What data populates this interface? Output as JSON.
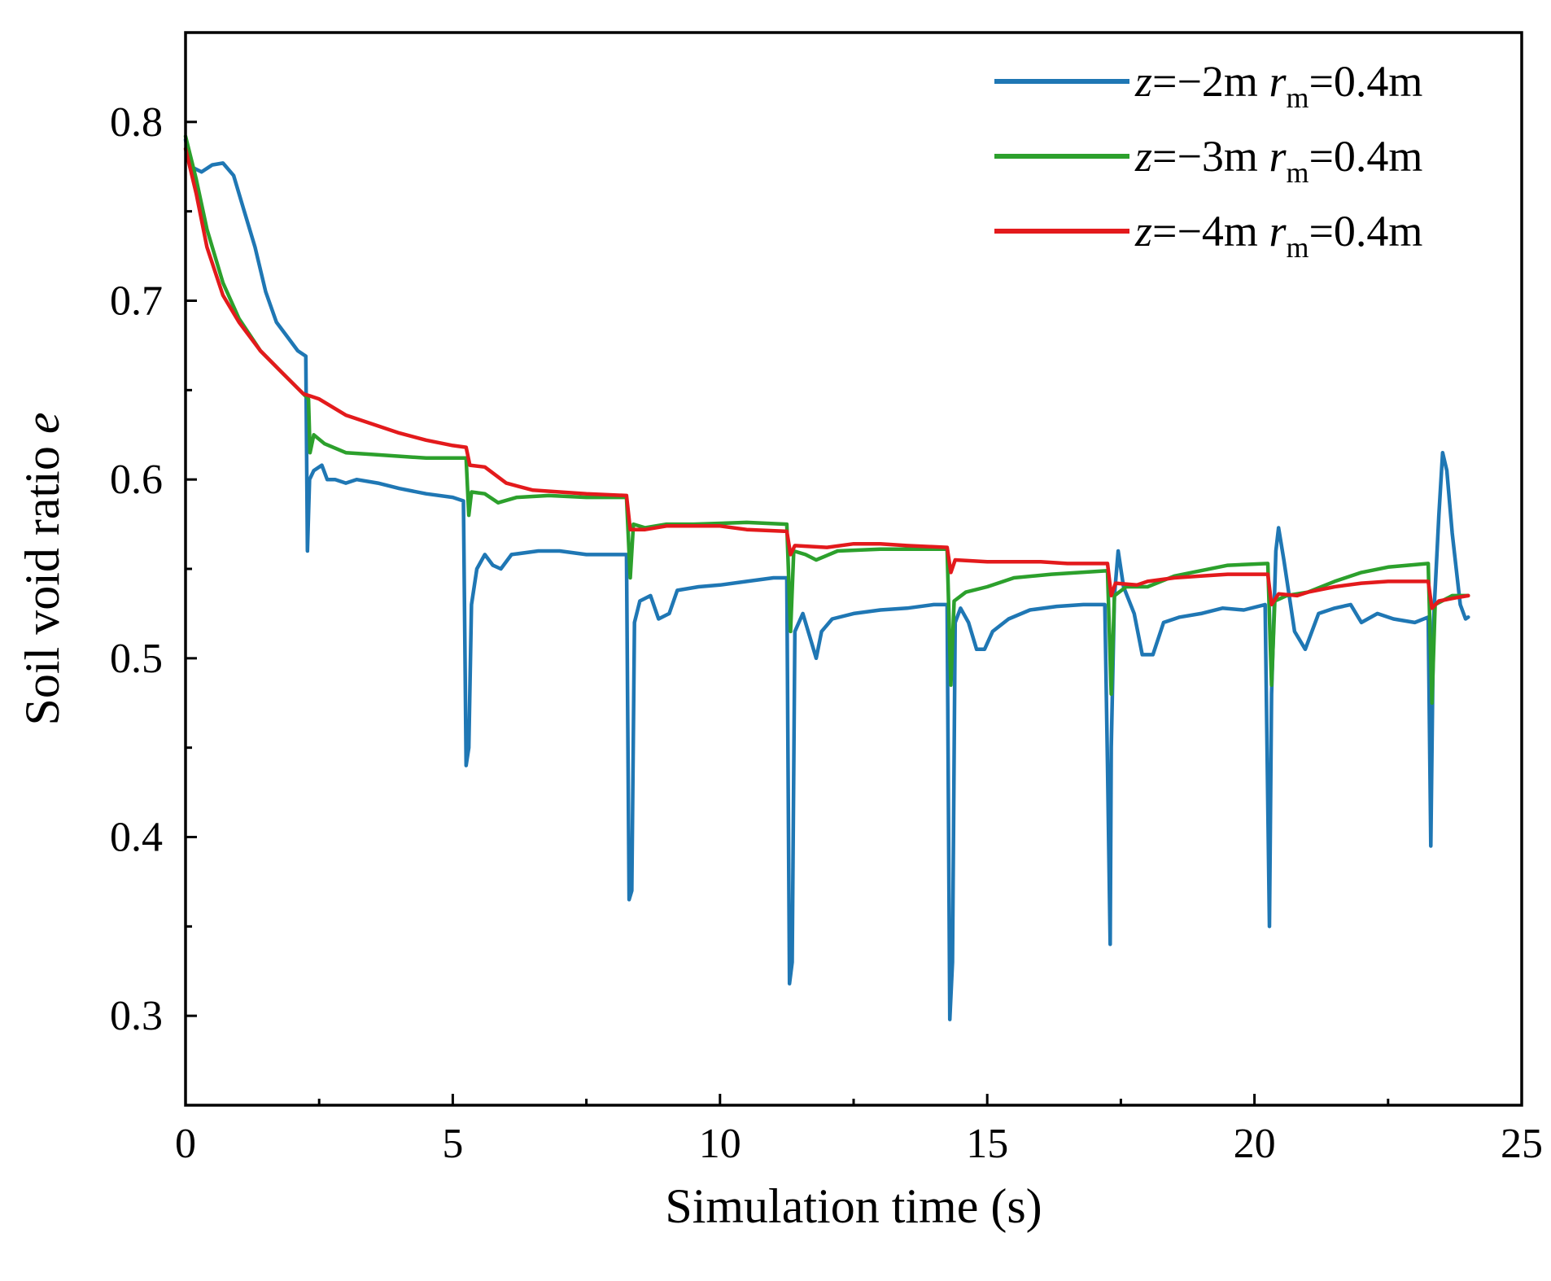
{
  "chart_data": {
    "type": "line",
    "title": "",
    "xlabel": "Simulation time (s)",
    "ylabel": {
      "main": "Soil void ratio ",
      "var": "e"
    },
    "xlim": [
      0,
      25
    ],
    "ylim": [
      0.25,
      0.85
    ],
    "xticks": [
      "0",
      "5",
      "10",
      "15",
      "20",
      "25"
    ],
    "xtick_values": [
      0,
      5,
      10,
      15,
      20,
      25
    ],
    "yticks": [
      "0.3",
      "0.4",
      "0.5",
      "0.6",
      "0.7",
      "0.8"
    ],
    "ytick_values": [
      0.3,
      0.4,
      0.5,
      0.6,
      0.7,
      0.8
    ],
    "grid": false,
    "legend_position": "top-right",
    "series": [
      {
        "name": "z=−2m rm=0.4m",
        "label": {
          "z": "z",
          "eq1": "=−2m ",
          "r": "r",
          "sub": "m",
          "eq2": "=0.4m"
        },
        "color": "#1f77b4",
        "points": [
          [
            0.0,
            0.79
          ],
          [
            0.1,
            0.775
          ],
          [
            0.3,
            0.772
          ],
          [
            0.5,
            0.776
          ],
          [
            0.7,
            0.777
          ],
          [
            0.9,
            0.77
          ],
          [
            1.1,
            0.75
          ],
          [
            1.3,
            0.73
          ],
          [
            1.5,
            0.705
          ],
          [
            1.7,
            0.688
          ],
          [
            1.9,
            0.68
          ],
          [
            2.1,
            0.672
          ],
          [
            2.25,
            0.669
          ],
          [
            2.28,
            0.56
          ],
          [
            2.32,
            0.6
          ],
          [
            2.4,
            0.605
          ],
          [
            2.55,
            0.608
          ],
          [
            2.65,
            0.6
          ],
          [
            2.8,
            0.6
          ],
          [
            3.0,
            0.598
          ],
          [
            3.2,
            0.6
          ],
          [
            3.6,
            0.598
          ],
          [
            4.0,
            0.595
          ],
          [
            4.5,
            0.592
          ],
          [
            5.0,
            0.59
          ],
          [
            5.2,
            0.588
          ],
          [
            5.25,
            0.44
          ],
          [
            5.3,
            0.45
          ],
          [
            5.35,
            0.53
          ],
          [
            5.45,
            0.55
          ],
          [
            5.6,
            0.558
          ],
          [
            5.75,
            0.552
          ],
          [
            5.9,
            0.55
          ],
          [
            6.1,
            0.558
          ],
          [
            6.6,
            0.56
          ],
          [
            7.0,
            0.56
          ],
          [
            7.5,
            0.558
          ],
          [
            8.25,
            0.558
          ],
          [
            8.3,
            0.365
          ],
          [
            8.35,
            0.37
          ],
          [
            8.4,
            0.52
          ],
          [
            8.5,
            0.532
          ],
          [
            8.7,
            0.535
          ],
          [
            8.85,
            0.522
          ],
          [
            9.05,
            0.525
          ],
          [
            9.2,
            0.538
          ],
          [
            9.6,
            0.54
          ],
          [
            10.0,
            0.541
          ],
          [
            10.5,
            0.543
          ],
          [
            11.0,
            0.545
          ],
          [
            11.25,
            0.545
          ],
          [
            11.3,
            0.318
          ],
          [
            11.35,
            0.33
          ],
          [
            11.4,
            0.515
          ],
          [
            11.55,
            0.525
          ],
          [
            11.7,
            0.51
          ],
          [
            11.8,
            0.5
          ],
          [
            11.9,
            0.515
          ],
          [
            12.1,
            0.522
          ],
          [
            12.5,
            0.525
          ],
          [
            13.0,
            0.527
          ],
          [
            13.5,
            0.528
          ],
          [
            14.0,
            0.53
          ],
          [
            14.25,
            0.53
          ],
          [
            14.3,
            0.298
          ],
          [
            14.35,
            0.33
          ],
          [
            14.4,
            0.52
          ],
          [
            14.5,
            0.528
          ],
          [
            14.65,
            0.52
          ],
          [
            14.8,
            0.505
          ],
          [
            14.95,
            0.505
          ],
          [
            15.1,
            0.515
          ],
          [
            15.4,
            0.522
          ],
          [
            15.8,
            0.527
          ],
          [
            16.3,
            0.529
          ],
          [
            16.8,
            0.53
          ],
          [
            17.2,
            0.53
          ],
          [
            17.25,
            0.44
          ],
          [
            17.3,
            0.34
          ],
          [
            17.32,
            0.45
          ],
          [
            17.38,
            0.535
          ],
          [
            17.45,
            0.56
          ],
          [
            17.55,
            0.54
          ],
          [
            17.75,
            0.525
          ],
          [
            17.9,
            0.502
          ],
          [
            18.1,
            0.502
          ],
          [
            18.3,
            0.52
          ],
          [
            18.6,
            0.523
          ],
          [
            19.0,
            0.525
          ],
          [
            19.4,
            0.528
          ],
          [
            19.8,
            0.527
          ],
          [
            20.2,
            0.53
          ],
          [
            20.28,
            0.35
          ],
          [
            20.32,
            0.48
          ],
          [
            20.4,
            0.56
          ],
          [
            20.45,
            0.573
          ],
          [
            20.55,
            0.555
          ],
          [
            20.75,
            0.515
          ],
          [
            20.95,
            0.505
          ],
          [
            21.2,
            0.525
          ],
          [
            21.5,
            0.528
          ],
          [
            21.8,
            0.53
          ],
          [
            22.0,
            0.52
          ],
          [
            22.3,
            0.525
          ],
          [
            22.6,
            0.522
          ],
          [
            23.0,
            0.52
          ],
          [
            23.25,
            0.523
          ],
          [
            23.3,
            0.395
          ],
          [
            23.35,
            0.52
          ],
          [
            23.45,
            0.58
          ],
          [
            23.52,
            0.615
          ],
          [
            23.6,
            0.605
          ],
          [
            23.7,
            0.57
          ],
          [
            23.85,
            0.53
          ],
          [
            23.95,
            0.522
          ],
          [
            24.0,
            0.523
          ]
        ]
      },
      {
        "name": "z=−3m rm=0.4m",
        "label": {
          "z": "z",
          "eq1": "=−3m ",
          "r": "r",
          "sub": "m",
          "eq2": "=0.4m"
        },
        "color": "#2ca02c",
        "points": [
          [
            0.0,
            0.792
          ],
          [
            0.2,
            0.768
          ],
          [
            0.4,
            0.74
          ],
          [
            0.7,
            0.71
          ],
          [
            1.0,
            0.69
          ],
          [
            1.4,
            0.672
          ],
          [
            1.8,
            0.66
          ],
          [
            2.2,
            0.648
          ],
          [
            2.3,
            0.645
          ],
          [
            2.33,
            0.615
          ],
          [
            2.4,
            0.625
          ],
          [
            2.6,
            0.62
          ],
          [
            3.0,
            0.615
          ],
          [
            3.5,
            0.614
          ],
          [
            4.0,
            0.613
          ],
          [
            4.5,
            0.612
          ],
          [
            5.0,
            0.612
          ],
          [
            5.25,
            0.612
          ],
          [
            5.3,
            0.58
          ],
          [
            5.35,
            0.593
          ],
          [
            5.6,
            0.592
          ],
          [
            5.85,
            0.587
          ],
          [
            6.2,
            0.59
          ],
          [
            6.8,
            0.591
          ],
          [
            7.5,
            0.59
          ],
          [
            8.25,
            0.59
          ],
          [
            8.32,
            0.545
          ],
          [
            8.38,
            0.575
          ],
          [
            8.6,
            0.573
          ],
          [
            9.0,
            0.575
          ],
          [
            9.5,
            0.575
          ],
          [
            10.5,
            0.576
          ],
          [
            11.25,
            0.575
          ],
          [
            11.32,
            0.515
          ],
          [
            11.38,
            0.56
          ],
          [
            11.6,
            0.558
          ],
          [
            11.8,
            0.555
          ],
          [
            12.2,
            0.56
          ],
          [
            13.0,
            0.561
          ],
          [
            14.0,
            0.561
          ],
          [
            14.25,
            0.561
          ],
          [
            14.32,
            0.485
          ],
          [
            14.38,
            0.532
          ],
          [
            14.6,
            0.537
          ],
          [
            15.0,
            0.54
          ],
          [
            15.5,
            0.545
          ],
          [
            16.2,
            0.547
          ],
          [
            17.25,
            0.549
          ],
          [
            17.32,
            0.48
          ],
          [
            17.38,
            0.535
          ],
          [
            17.6,
            0.54
          ],
          [
            18.0,
            0.54
          ],
          [
            18.5,
            0.546
          ],
          [
            19.0,
            0.549
          ],
          [
            19.5,
            0.552
          ],
          [
            20.25,
            0.553
          ],
          [
            20.32,
            0.485
          ],
          [
            20.38,
            0.532
          ],
          [
            20.6,
            0.535
          ],
          [
            21.0,
            0.537
          ],
          [
            21.5,
            0.543
          ],
          [
            22.0,
            0.548
          ],
          [
            22.5,
            0.551
          ],
          [
            23.25,
            0.553
          ],
          [
            23.32,
            0.475
          ],
          [
            23.38,
            0.53
          ],
          [
            23.7,
            0.535
          ],
          [
            24.0,
            0.535
          ]
        ]
      },
      {
        "name": "z=−4m rm=0.4m",
        "label": {
          "z": "z",
          "eq1": "=−4m ",
          "r": "r",
          "sub": "m",
          "eq2": "=0.4m"
        },
        "color": "#e31a1c",
        "points": [
          [
            0.0,
            0.785
          ],
          [
            0.2,
            0.76
          ],
          [
            0.4,
            0.73
          ],
          [
            0.7,
            0.703
          ],
          [
            1.0,
            0.688
          ],
          [
            1.4,
            0.672
          ],
          [
            1.8,
            0.66
          ],
          [
            2.2,
            0.648
          ],
          [
            2.5,
            0.645
          ],
          [
            3.0,
            0.636
          ],
          [
            3.5,
            0.631
          ],
          [
            4.0,
            0.626
          ],
          [
            4.5,
            0.622
          ],
          [
            5.0,
            0.619
          ],
          [
            5.25,
            0.618
          ],
          [
            5.32,
            0.608
          ],
          [
            5.6,
            0.607
          ],
          [
            6.0,
            0.598
          ],
          [
            6.5,
            0.594
          ],
          [
            7.0,
            0.593
          ],
          [
            7.5,
            0.592
          ],
          [
            8.25,
            0.591
          ],
          [
            8.32,
            0.572
          ],
          [
            8.6,
            0.572
          ],
          [
            9.0,
            0.574
          ],
          [
            9.5,
            0.574
          ],
          [
            10.0,
            0.574
          ],
          [
            10.5,
            0.572
          ],
          [
            11.25,
            0.571
          ],
          [
            11.32,
            0.558
          ],
          [
            11.4,
            0.563
          ],
          [
            12.0,
            0.562
          ],
          [
            12.5,
            0.564
          ],
          [
            13.0,
            0.564
          ],
          [
            13.5,
            0.563
          ],
          [
            14.25,
            0.562
          ],
          [
            14.32,
            0.548
          ],
          [
            14.4,
            0.555
          ],
          [
            15.0,
            0.554
          ],
          [
            15.5,
            0.554
          ],
          [
            16.0,
            0.554
          ],
          [
            16.5,
            0.553
          ],
          [
            17.25,
            0.553
          ],
          [
            17.32,
            0.535
          ],
          [
            17.4,
            0.542
          ],
          [
            17.8,
            0.541
          ],
          [
            18.0,
            0.543
          ],
          [
            18.5,
            0.545
          ],
          [
            19.0,
            0.546
          ],
          [
            19.5,
            0.547
          ],
          [
            20.25,
            0.547
          ],
          [
            20.32,
            0.53
          ],
          [
            20.45,
            0.536
          ],
          [
            20.8,
            0.535
          ],
          [
            21.0,
            0.537
          ],
          [
            21.5,
            0.54
          ],
          [
            22.0,
            0.542
          ],
          [
            22.5,
            0.543
          ],
          [
            23.25,
            0.543
          ],
          [
            23.32,
            0.528
          ],
          [
            23.45,
            0.532
          ],
          [
            23.8,
            0.534
          ],
          [
            24.0,
            0.535
          ]
        ]
      }
    ]
  }
}
